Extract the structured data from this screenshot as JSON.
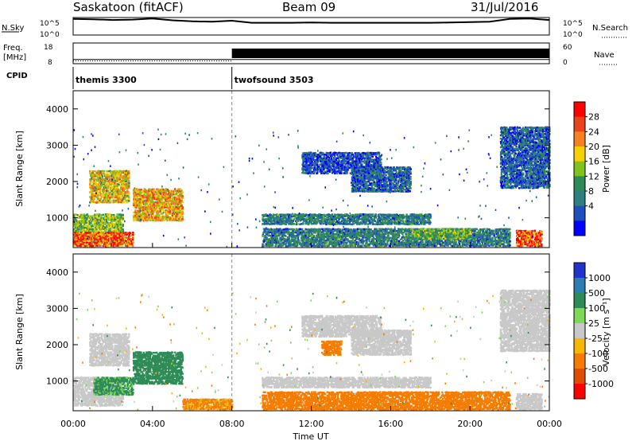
{
  "header": {
    "station": "Saskatoon (fitACF)",
    "beam": "Beam 09",
    "date": "31/Jul/2016"
  },
  "top_panel": {
    "left_label": "N.Sky",
    "right_label": "N.Search",
    "left_ticks": [
      "10^5",
      "10^0"
    ],
    "right_ticks": [
      "10^5",
      "10^0"
    ]
  },
  "freq_panel": {
    "left_label_line1": "Freq.",
    "left_label_line2": "[MHz]",
    "right_label": "Nave",
    "left_ticks": [
      "18",
      "8"
    ],
    "right_ticks": [
      "60",
      "0"
    ]
  },
  "cpid_panel": {
    "label": "CPID",
    "segments": [
      {
        "name": "themis 3300",
        "start_hour": 0
      },
      {
        "name": "twofsound 3503",
        "start_hour": 8
      }
    ]
  },
  "power_panel": {
    "ylabel": "Slant Range [km]",
    "colorbar_label": "Power [dB]",
    "colorbar_ticks": [
      "28",
      "24",
      "20",
      "16",
      "12",
      "8",
      "4"
    ],
    "colors": [
      "#ff0000",
      "#e8451b",
      "#f58220",
      "#f6d000",
      "#7fc31c",
      "#2e8b57",
      "#2f7f7f",
      "#1f4fbf",
      "#0000ff"
    ]
  },
  "velocity_panel": {
    "ylabel": "Slant Range [km]",
    "colorbar_label": "Velocity [m s⁻¹]",
    "colorbar_ticks": [
      "1000",
      "500",
      "100",
      "25",
      "-25",
      "-100",
      "-500",
      "-1000"
    ],
    "colors": [
      "#2233cc",
      "#2a7fb0",
      "#2e8b57",
      "#7ed957",
      "#c8c8c8",
      "#f5b700",
      "#f57c00",
      "#e04d00",
      "#ff0000"
    ]
  },
  "x_axis": {
    "ticks": [
      "00:00",
      "04:00",
      "08:00",
      "12:00",
      "16:00",
      "20:00",
      "00:00"
    ],
    "label": "Time UT"
  },
  "chart_data": [
    {
      "type": "line",
      "name": "N.Sky / N.Search",
      "x_hours": [
        0,
        1,
        2,
        3,
        4,
        5,
        6,
        7,
        8,
        9,
        10,
        11,
        12,
        13,
        14,
        15,
        16,
        17,
        18,
        19,
        20,
        21,
        22,
        23,
        24
      ],
      "y_log10": [
        4.6,
        4.5,
        4.3,
        4.4,
        4.7,
        4.2,
        3.9,
        3.8,
        4.1,
        3.5,
        3.5,
        3.5,
        3.6,
        3.5,
        3.5,
        3.5,
        3.5,
        3.5,
        3.5,
        3.6,
        3.7,
        3.8,
        4.6,
        4.7,
        4.3
      ],
      "ylim_log10": [
        0,
        5
      ]
    },
    {
      "type": "line",
      "name": "Freq / Nave",
      "freq_mhz": [
        {
          "x_hours": [
            0,
            8
          ],
          "value": 10
        },
        {
          "x_hours": [
            8,
            24
          ],
          "value": 10
        }
      ],
      "nave": [
        {
          "x_hours": [
            0,
            8
          ],
          "value": 8
        },
        {
          "x_hours": [
            8,
            24
          ],
          "value": 30
        }
      ],
      "freq_ylim": [
        8,
        18
      ],
      "nave_ylim": [
        0,
        60
      ]
    },
    {
      "type": "heatmap",
      "name": "Power",
      "x_range_hours": [
        0,
        24
      ],
      "y_range_km": [
        180,
        4500
      ],
      "y_ticks_km": [
        1000,
        2000,
        3000,
        4000
      ],
      "value_range_db": [
        0,
        30
      ],
      "blobs": [
        {
          "t0": 0.0,
          "t1": 2.5,
          "r0": 300,
          "r1": 1100,
          "value": 14
        },
        {
          "t0": 0.0,
          "t1": 3.0,
          "r0": 200,
          "r1": 600,
          "value": 26
        },
        {
          "t0": 0.8,
          "t1": 2.8,
          "r0": 1400,
          "r1": 2300,
          "value": 18
        },
        {
          "t0": 3.0,
          "t1": 5.5,
          "r0": 900,
          "r1": 1800,
          "value": 20
        },
        {
          "t0": 9.5,
          "t1": 18.0,
          "r0": 800,
          "r1": 1100,
          "value": 8
        },
        {
          "t0": 9.5,
          "t1": 22.0,
          "r0": 200,
          "r1": 700,
          "value": 8
        },
        {
          "t0": 11.5,
          "t1": 15.5,
          "r0": 2200,
          "r1": 2800,
          "value": 5
        },
        {
          "t0": 14.0,
          "t1": 17.0,
          "r0": 1700,
          "r1": 2400,
          "value": 6
        },
        {
          "t0": 17.0,
          "t1": 20.0,
          "r0": 400,
          "r1": 700,
          "value": 12
        },
        {
          "t0": 22.3,
          "t1": 23.6,
          "r0": 200,
          "r1": 650,
          "value": 26
        },
        {
          "t0": 21.5,
          "t1": 24.0,
          "r0": 1800,
          "r1": 3500,
          "value": 6
        }
      ]
    },
    {
      "type": "heatmap",
      "name": "Velocity",
      "x_range_hours": [
        0,
        24
      ],
      "y_range_km": [
        180,
        4500
      ],
      "y_ticks_km": [
        1000,
        2000,
        3000,
        4000
      ],
      "value_range_ms": [
        -1000,
        1000
      ],
      "blobs": [
        {
          "t0": 0.0,
          "t1": 2.5,
          "r0": 300,
          "r1": 1100,
          "value": 0
        },
        {
          "t0": 0.8,
          "t1": 2.8,
          "r0": 1400,
          "r1": 2300,
          "value": 0
        },
        {
          "t0": 1.0,
          "t1": 3.0,
          "r0": 600,
          "r1": 1100,
          "value": 120
        },
        {
          "t0": 3.0,
          "t1": 5.5,
          "r0": 900,
          "r1": 1800,
          "value": 200
        },
        {
          "t0": 5.5,
          "t1": 8.0,
          "r0": 200,
          "r1": 500,
          "value": -120
        },
        {
          "t0": 9.5,
          "t1": 22.0,
          "r0": 200,
          "r1": 700,
          "value": -150
        },
        {
          "t0": 9.5,
          "t1": 18.0,
          "r0": 800,
          "r1": 1100,
          "value": 0
        },
        {
          "t0": 11.5,
          "t1": 15.5,
          "r0": 2200,
          "r1": 2800,
          "value": 0
        },
        {
          "t0": 12.5,
          "t1": 13.5,
          "r0": 1700,
          "r1": 2100,
          "value": -300
        },
        {
          "t0": 14.0,
          "t1": 17.0,
          "r0": 1700,
          "r1": 2400,
          "value": 0
        },
        {
          "t0": 21.5,
          "t1": 24.0,
          "r0": 1800,
          "r1": 3500,
          "value": 0
        },
        {
          "t0": 22.3,
          "t1": 23.6,
          "r0": 200,
          "r1": 650,
          "value": 0
        }
      ]
    }
  ]
}
